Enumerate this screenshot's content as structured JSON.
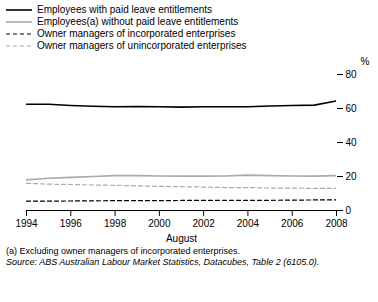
{
  "chart_data": {
    "type": "line",
    "xlabel": "August",
    "ylabel": "%",
    "x": [
      1994,
      1995,
      1996,
      1997,
      1998,
      1999,
      2000,
      2001,
      2002,
      2003,
      2004,
      2005,
      2006,
      2007,
      2008
    ],
    "xlim": [
      1994,
      2008
    ],
    "xticks": [
      1994,
      1996,
      1998,
      2000,
      2002,
      2004,
      2006,
      2008
    ],
    "ylim": [
      0,
      80
    ],
    "yticks": [
      0,
      20,
      40,
      60,
      80
    ],
    "grid": false,
    "legend": "top",
    "series": [
      {
        "name": "Employees with paid leave entitlements",
        "color": "#000000",
        "line_style": "solid",
        "values": [
          62.5,
          62.5,
          61.8,
          61.3,
          61.0,
          61.2,
          61.0,
          60.8,
          61.0,
          61.0,
          61.0,
          61.5,
          61.8,
          62.0,
          64.5
        ]
      },
      {
        "name": "Employees(a) without paid leave entitlements",
        "color": "#aaaaaa",
        "line_style": "solid",
        "values": [
          18.0,
          19.0,
          19.5,
          20.0,
          20.5,
          20.5,
          20.3,
          20.2,
          20.2,
          20.3,
          20.8,
          20.5,
          20.3,
          20.2,
          20.5
        ]
      },
      {
        "name": "Owner managers of incorporated enterprises",
        "color": "#000000",
        "line_style": "dashed",
        "values": [
          5.5,
          5.5,
          5.6,
          5.7,
          5.8,
          5.8,
          5.8,
          5.9,
          5.9,
          6.0,
          6.0,
          6.0,
          6.1,
          6.2,
          6.2
        ]
      },
      {
        "name": "Owner managers of unincorporated enterprises",
        "color": "#aaaaaa",
        "line_style": "dashed",
        "values": [
          16.0,
          15.5,
          15.3,
          15.0,
          14.8,
          14.5,
          14.2,
          14.0,
          13.8,
          13.5,
          13.5,
          13.2,
          13.2,
          13.0,
          13.0
        ]
      }
    ],
    "annotations": [
      "(a) Excluding owner managers of incorporated enterprises.",
      "Source: ABS Australian Labour Market Statistics, Datacubes, Table 2 (6105.0)."
    ]
  }
}
